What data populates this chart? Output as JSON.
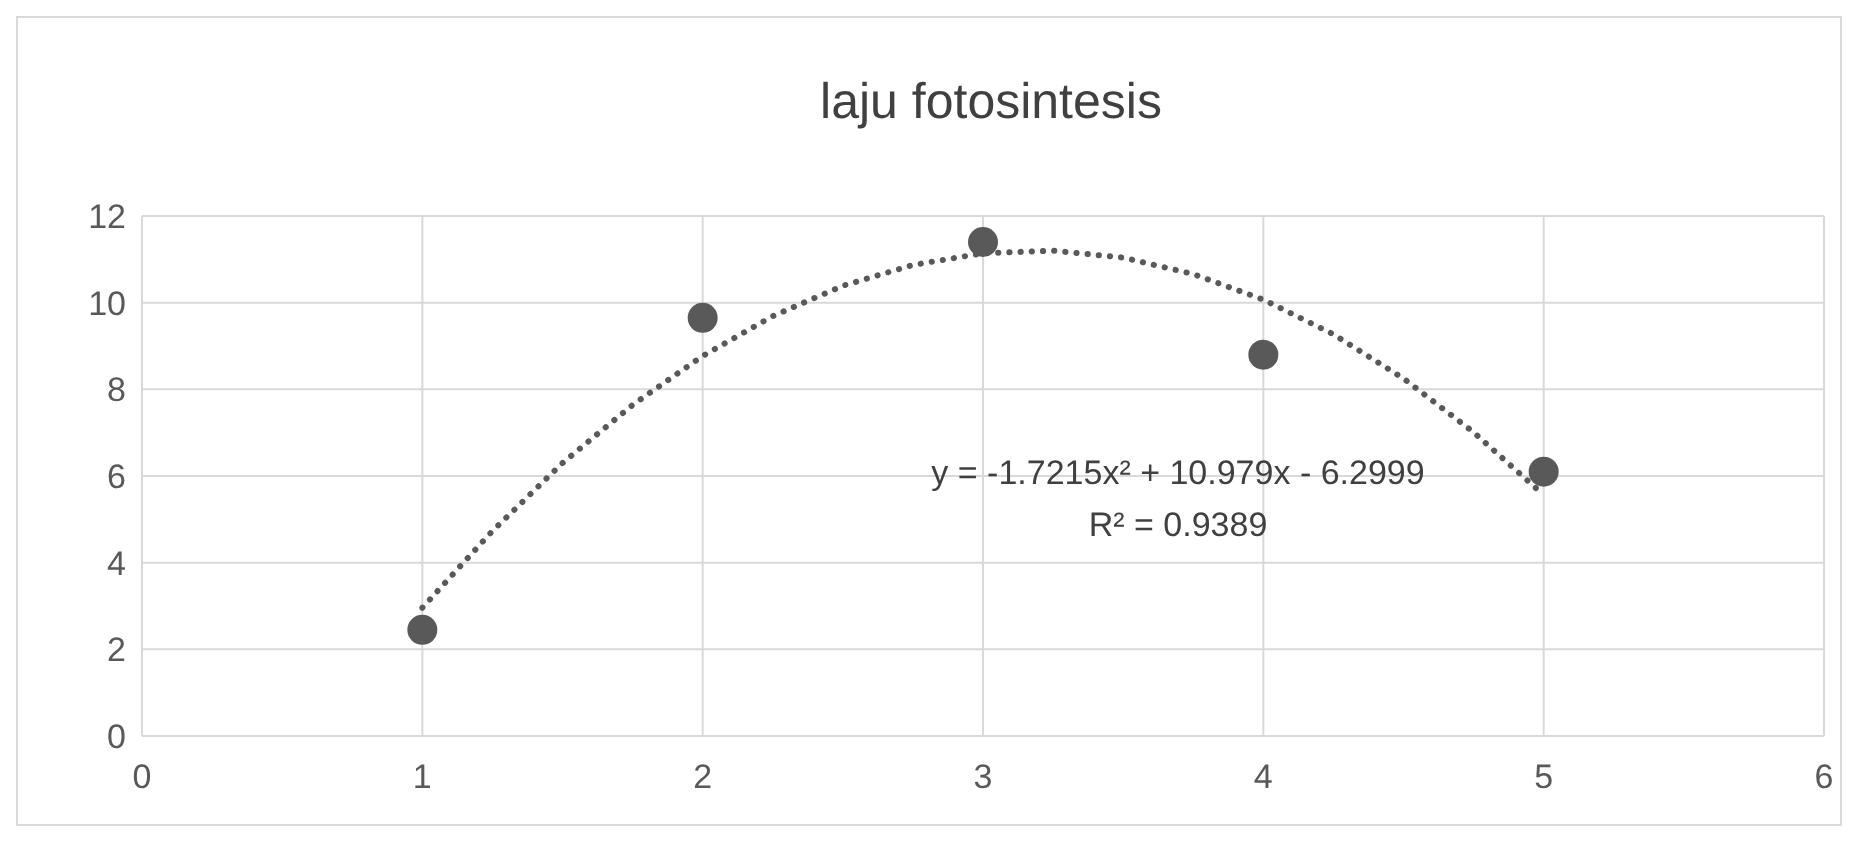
{
  "chart_data": {
    "type": "scatter",
    "title": "laju fotosintesis",
    "series": [
      {
        "color": "#595959",
        "marker": "circle",
        "x": [
          1,
          2,
          3,
          4,
          5
        ],
        "values": [
          2.45,
          9.65,
          11.4,
          8.8,
          6.1
        ]
      },
      {
        "type": "line",
        "color": "#595959",
        "marker": "none",
        "line_style": "dotted",
        "x": [
          1,
          1.25,
          1.5,
          1.75,
          2,
          2.25,
          2.5,
          2.75,
          3,
          3.25,
          3.5,
          3.75,
          4,
          4.25,
          4.5,
          4.75,
          5
        ],
        "values": [
          2.96,
          4.73,
          6.3,
          7.64,
          8.77,
          9.69,
          10.39,
          10.87,
          11.14,
          11.2,
          11.04,
          10.66,
          10.07,
          9.27,
          8.25,
          7.01,
          5.56
        ]
      }
    ],
    "annotations": [
      "y = -1.7215x² + 10.979x - 6.2999",
      "R² = 0.9389"
    ],
    "xlim": [
      0,
      6
    ],
    "xticks": [
      0,
      1,
      2,
      3,
      4,
      5,
      6
    ],
    "ylim": [
      0,
      12
    ],
    "yticks": [
      0,
      2,
      4,
      6,
      8,
      10,
      12
    ],
    "grid": true,
    "legend": false
  }
}
